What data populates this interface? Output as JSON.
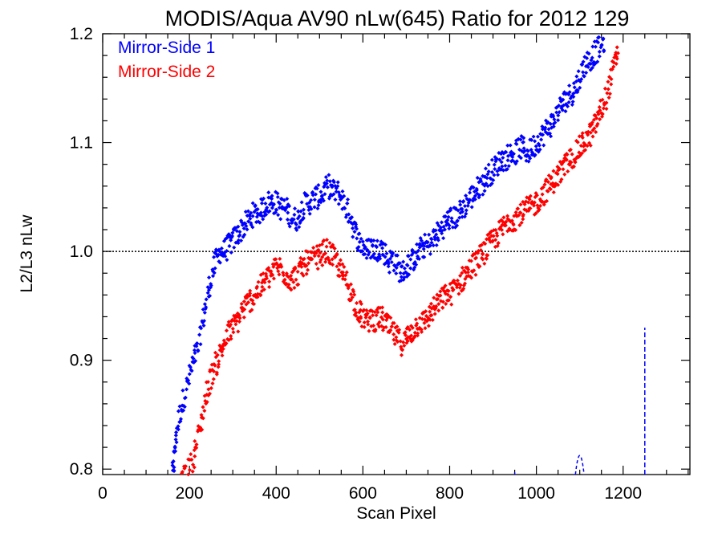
{
  "chart_data": {
    "type": "scatter",
    "title": "MODIS/Aqua AV90 nLw(645) Ratio for 2012 129",
    "xlabel": "Scan Pixel",
    "ylabel": "L2/L3 nLw",
    "xlim": [
      0,
      1354
    ],
    "ylim": [
      0.795,
      1.2
    ],
    "xticks": [
      "0",
      "200",
      "400",
      "600",
      "800",
      "1000",
      "1200"
    ],
    "yticks": [
      "0.8",
      "0.9",
      "1.0",
      "1.1",
      "1.2"
    ],
    "reference_line": 1.0,
    "legend_position": "top-left",
    "series": [
      {
        "name": "Mirror-Side 1",
        "color": "#0000ff",
        "points": [
          [
            160,
            0.79
          ],
          [
            165,
            0.81
          ],
          [
            170,
            0.835
          ],
          [
            180,
            0.855
          ],
          [
            190,
            0.87
          ],
          [
            200,
            0.885
          ],
          [
            210,
            0.9
          ],
          [
            220,
            0.91
          ],
          [
            230,
            0.935
          ],
          [
            240,
            0.955
          ],
          [
            250,
            0.975
          ],
          [
            260,
            0.99
          ],
          [
            270,
            1.0
          ],
          [
            280,
            1.0
          ],
          [
            290,
            1.005
          ],
          [
            300,
            1.01
          ],
          [
            310,
            1.015
          ],
          [
            320,
            1.02
          ],
          [
            330,
            1.025
          ],
          [
            340,
            1.03
          ],
          [
            350,
            1.035
          ],
          [
            360,
            1.035
          ],
          [
            370,
            1.04
          ],
          [
            380,
            1.045
          ],
          [
            390,
            1.045
          ],
          [
            400,
            1.045
          ],
          [
            410,
            1.04
          ],
          [
            420,
            1.04
          ],
          [
            430,
            1.035
          ],
          [
            440,
            1.03
          ],
          [
            450,
            1.03
          ],
          [
            460,
            1.04
          ],
          [
            470,
            1.045
          ],
          [
            480,
            1.045
          ],
          [
            490,
            1.05
          ],
          [
            500,
            1.05
          ],
          [
            510,
            1.055
          ],
          [
            520,
            1.06
          ],
          [
            530,
            1.055
          ],
          [
            540,
            1.055
          ],
          [
            550,
            1.05
          ],
          [
            560,
            1.04
          ],
          [
            570,
            1.035
          ],
          [
            580,
            1.02
          ],
          [
            590,
            1.01
          ],
          [
            600,
            1.005
          ],
          [
            610,
            1.0
          ],
          [
            620,
            1.005
          ],
          [
            630,
            1.0
          ],
          [
            640,
            1.005
          ],
          [
            650,
            1.0
          ],
          [
            660,
            0.99
          ],
          [
            670,
            0.995
          ],
          [
            680,
            0.985
          ],
          [
            690,
            0.98
          ],
          [
            700,
            0.985
          ],
          [
            710,
            0.99
          ],
          [
            720,
            0.995
          ],
          [
            730,
            1.0
          ],
          [
            740,
            1.005
          ],
          [
            750,
            1.005
          ],
          [
            760,
            1.01
          ],
          [
            770,
            1.015
          ],
          [
            780,
            1.02
          ],
          [
            790,
            1.025
          ],
          [
            800,
            1.03
          ],
          [
            810,
            1.03
          ],
          [
            820,
            1.035
          ],
          [
            830,
            1.04
          ],
          [
            840,
            1.045
          ],
          [
            850,
            1.05
          ],
          [
            860,
            1.055
          ],
          [
            870,
            1.06
          ],
          [
            880,
            1.065
          ],
          [
            890,
            1.07
          ],
          [
            900,
            1.075
          ],
          [
            910,
            1.08
          ],
          [
            920,
            1.085
          ],
          [
            930,
            1.085
          ],
          [
            940,
            1.09
          ],
          [
            950,
            1.09
          ],
          [
            960,
            1.095
          ],
          [
            970,
            1.095
          ],
          [
            980,
            1.09
          ],
          [
            990,
            1.095
          ],
          [
            1000,
            1.1
          ],
          [
            1010,
            1.105
          ],
          [
            1020,
            1.11
          ],
          [
            1030,
            1.115
          ],
          [
            1040,
            1.12
          ],
          [
            1050,
            1.13
          ],
          [
            1060,
            1.135
          ],
          [
            1070,
            1.14
          ],
          [
            1080,
            1.145
          ],
          [
            1090,
            1.15
          ],
          [
            1100,
            1.16
          ],
          [
            1110,
            1.17
          ],
          [
            1120,
            1.175
          ],
          [
            1130,
            1.18
          ],
          [
            1140,
            1.185
          ],
          [
            1150,
            1.19
          ],
          [
            1160,
            1.195
          ]
        ],
        "markers": [
          [
            950,
            0.797
          ],
          [
            1095,
            0.81
          ],
          [
            1100,
            0.815
          ],
          [
            1105,
            0.81
          ],
          [
            1250,
            0.93
          ]
        ]
      },
      {
        "name": "Mirror-Side 2",
        "color": "#ff0000",
        "points": [
          [
            180,
            0.79
          ],
          [
            190,
            0.795
          ],
          [
            200,
            0.8
          ],
          [
            210,
            0.81
          ],
          [
            220,
            0.83
          ],
          [
            230,
            0.85
          ],
          [
            240,
            0.87
          ],
          [
            250,
            0.885
          ],
          [
            260,
            0.895
          ],
          [
            270,
            0.905
          ],
          [
            280,
            0.915
          ],
          [
            290,
            0.925
          ],
          [
            300,
            0.93
          ],
          [
            310,
            0.935
          ],
          [
            320,
            0.945
          ],
          [
            330,
            0.95
          ],
          [
            340,
            0.955
          ],
          [
            350,
            0.96
          ],
          [
            360,
            0.965
          ],
          [
            370,
            0.97
          ],
          [
            380,
            0.975
          ],
          [
            390,
            0.98
          ],
          [
            400,
            0.985
          ],
          [
            410,
            0.985
          ],
          [
            420,
            0.98
          ],
          [
            430,
            0.975
          ],
          [
            440,
            0.975
          ],
          [
            450,
            0.98
          ],
          [
            460,
            0.985
          ],
          [
            470,
            0.99
          ],
          [
            480,
            0.99
          ],
          [
            490,
            0.995
          ],
          [
            500,
            0.995
          ],
          [
            510,
            1.0
          ],
          [
            520,
            1.0
          ],
          [
            530,
            0.995
          ],
          [
            540,
            0.99
          ],
          [
            550,
            0.98
          ],
          [
            560,
            0.975
          ],
          [
            570,
            0.965
          ],
          [
            580,
            0.955
          ],
          [
            590,
            0.945
          ],
          [
            600,
            0.94
          ],
          [
            610,
            0.935
          ],
          [
            620,
            0.94
          ],
          [
            630,
            0.935
          ],
          [
            640,
            0.94
          ],
          [
            650,
            0.935
          ],
          [
            660,
            0.93
          ],
          [
            670,
            0.925
          ],
          [
            680,
            0.92
          ],
          [
            690,
            0.915
          ],
          [
            700,
            0.92
          ],
          [
            710,
            0.925
          ],
          [
            720,
            0.93
          ],
          [
            730,
            0.935
          ],
          [
            740,
            0.935
          ],
          [
            750,
            0.94
          ],
          [
            760,
            0.945
          ],
          [
            770,
            0.95
          ],
          [
            780,
            0.955
          ],
          [
            790,
            0.96
          ],
          [
            800,
            0.96
          ],
          [
            810,
            0.965
          ],
          [
            820,
            0.97
          ],
          [
            830,
            0.975
          ],
          [
            840,
            0.98
          ],
          [
            850,
            0.985
          ],
          [
            860,
            0.99
          ],
          [
            870,
            0.995
          ],
          [
            880,
            1.0
          ],
          [
            890,
            1.005
          ],
          [
            900,
            1.01
          ],
          [
            910,
            1.015
          ],
          [
            920,
            1.02
          ],
          [
            930,
            1.025
          ],
          [
            940,
            1.03
          ],
          [
            950,
            1.03
          ],
          [
            960,
            1.035
          ],
          [
            970,
            1.035
          ],
          [
            980,
            1.04
          ],
          [
            990,
            1.04
          ],
          [
            1000,
            1.045
          ],
          [
            1010,
            1.05
          ],
          [
            1020,
            1.055
          ],
          [
            1030,
            1.06
          ],
          [
            1040,
            1.065
          ],
          [
            1050,
            1.07
          ],
          [
            1060,
            1.075
          ],
          [
            1070,
            1.08
          ],
          [
            1080,
            1.085
          ],
          [
            1090,
            1.09
          ],
          [
            1100,
            1.095
          ],
          [
            1110,
            1.1
          ],
          [
            1120,
            1.105
          ],
          [
            1130,
            1.11
          ],
          [
            1140,
            1.12
          ],
          [
            1150,
            1.13
          ],
          [
            1160,
            1.14
          ],
          [
            1170,
            1.155
          ],
          [
            1180,
            1.17
          ],
          [
            1190,
            1.19
          ]
        ],
        "markers": []
      }
    ]
  }
}
